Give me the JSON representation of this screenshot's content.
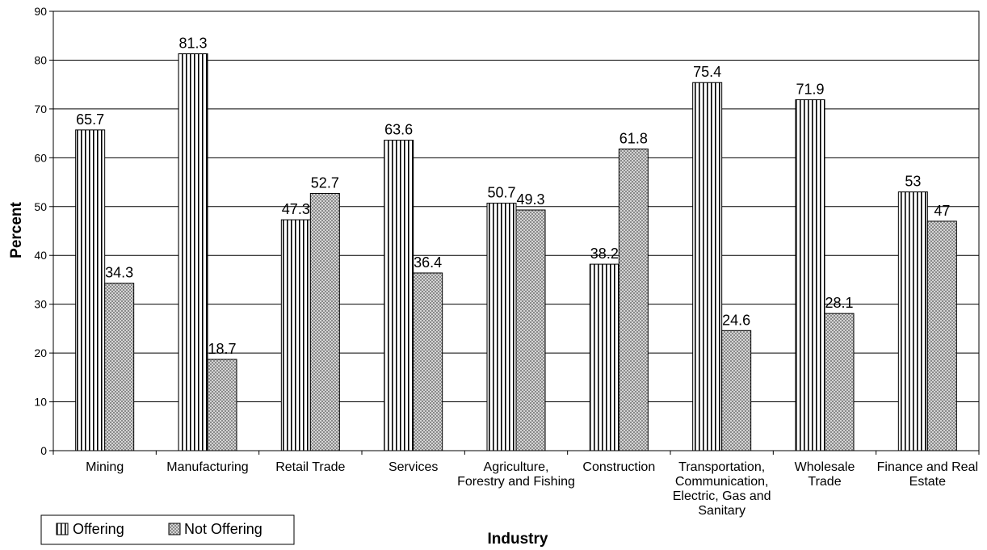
{
  "chart_data": {
    "type": "bar",
    "title": "",
    "xlabel": "Industry",
    "ylabel": "Percent",
    "ylim": [
      0,
      90
    ],
    "yticks": [
      0,
      10,
      20,
      30,
      40,
      50,
      60,
      70,
      80,
      90
    ],
    "grid": true,
    "legend_position": "bottom-left",
    "categories": [
      "Mining",
      "Manufacturing",
      "Retail Trade",
      "Services",
      "Agriculture, Forestry and Fishing",
      "Construction",
      "Transportation, Communication, Electric, Gas and Sanitary",
      "Wholesale Trade",
      "Finance and Real Estate"
    ],
    "category_lines": [
      [
        "Mining"
      ],
      [
        "Manufacturing"
      ],
      [
        "Retail Trade"
      ],
      [
        "Services"
      ],
      [
        "Agriculture,",
        "Forestry and Fishing"
      ],
      [
        "Construction"
      ],
      [
        "Transportation,",
        "Communication,",
        "Electric, Gas and",
        "Sanitary"
      ],
      [
        "Wholesale",
        "Trade"
      ],
      [
        "Finance and Real",
        "Estate"
      ]
    ],
    "series": [
      {
        "name": "Offering",
        "pattern": "vertical-stripes",
        "values": [
          65.7,
          81.3,
          47.3,
          63.6,
          50.7,
          38.2,
          75.4,
          71.9,
          53
        ],
        "labels": [
          "65.7",
          "81.3",
          "47.3",
          "63.6",
          "50.7",
          "38.2",
          "75.4",
          "71.9",
          "53"
        ]
      },
      {
        "name": "Not Offering",
        "pattern": "crosshatch",
        "values": [
          34.3,
          18.7,
          52.7,
          36.4,
          49.3,
          61.8,
          24.6,
          28.1,
          47
        ],
        "labels": [
          "34.3",
          "18.7",
          "52.7",
          "36.4",
          "49.3",
          "61.8",
          "24.6",
          "28.1",
          "47"
        ]
      }
    ]
  }
}
